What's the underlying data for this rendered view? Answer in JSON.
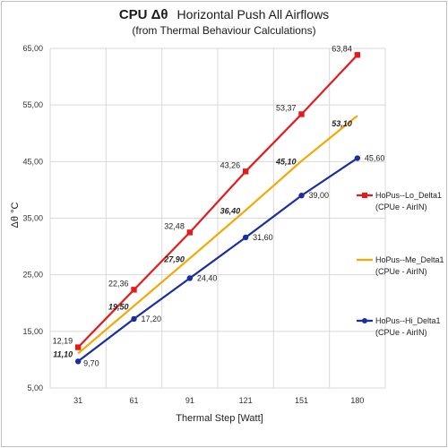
{
  "chart_data": {
    "type": "line",
    "title": "CPU  Δθ",
    "title_rest": "Horizontal Push All Airflows",
    "subtitle": "(from Thermal Behaviour Calculations)",
    "xlabel": "Thermal Step [Watt]",
    "ylabel": "Δθ °C",
    "categories": [
      "31",
      "61",
      "91",
      "121",
      "151",
      "180"
    ],
    "ylim": [
      5,
      65
    ],
    "yticks": [
      "5,00",
      "15,00",
      "25,00",
      "35,00",
      "45,00",
      "55,00",
      "65,00"
    ],
    "grid": true,
    "legend_position": "right",
    "series": [
      {
        "name": "HoPus--Lo_Delta1",
        "sub": "(CPUe - AirIN)",
        "color": "#e31b1b",
        "marker": "square",
        "values": [
          12.19,
          22.36,
          32.48,
          43.26,
          53.37,
          63.84
        ],
        "labels": [
          "12,19",
          "22,36",
          "32,48",
          "43,26",
          "53,37",
          "63,84"
        ],
        "emphasis": false
      },
      {
        "name": "HoPus--Me_Delta1",
        "sub": "(CPUe - AirIN)",
        "color": "#f5a800",
        "marker": "none",
        "values": [
          11.1,
          19.5,
          27.9,
          36.4,
          45.1,
          53.1
        ],
        "labels": [
          "11,10",
          "19,50",
          "27,90",
          "36,40",
          "45,10",
          "53,10"
        ],
        "emphasis": true
      },
      {
        "name": "HoPus--Hi_Delta1",
        "sub": "(CPUe - AirIN)",
        "color": "#1a2ea0",
        "marker": "circle",
        "values": [
          9.7,
          17.2,
          24.4,
          31.6,
          39.0,
          45.6
        ],
        "labels": [
          "9,70",
          "17,20",
          "24,40",
          "31,60",
          "39,00",
          "45,60"
        ],
        "emphasis": false
      }
    ]
  }
}
